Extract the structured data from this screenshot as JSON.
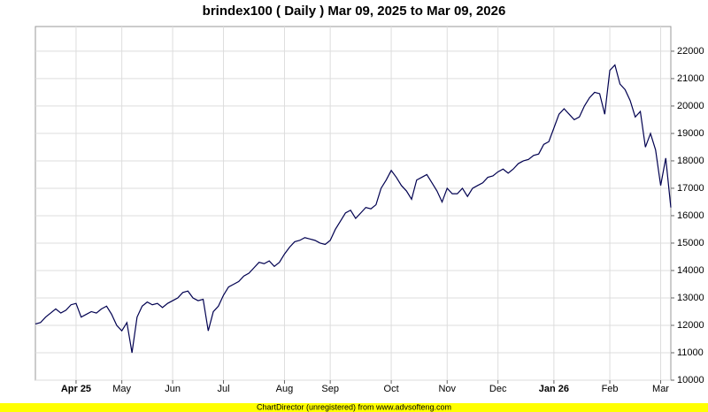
{
  "chart_data": {
    "type": "line",
    "title": "brindex100 ( Daily ) Mar 09, 2025 to Mar 09, 2026",
    "categories": [
      null,
      null,
      null,
      null,
      null,
      null,
      null,
      null,
      "Apr 25",
      null,
      null,
      null,
      null,
      null,
      null,
      null,
      null,
      "May",
      null,
      null,
      null,
      null,
      null,
      null,
      null,
      null,
      null,
      "Jun",
      null,
      null,
      null,
      null,
      null,
      null,
      null,
      null,
      null,
      "Jul",
      null,
      null,
      null,
      null,
      null,
      null,
      null,
      null,
      null,
      null,
      null,
      "Aug",
      null,
      null,
      null,
      null,
      null,
      null,
      null,
      null,
      "Sep",
      null,
      null,
      null,
      null,
      null,
      null,
      null,
      null,
      null,
      null,
      null,
      "Oct",
      null,
      null,
      null,
      null,
      null,
      null,
      null,
      null,
      null,
      null,
      "Nov",
      null,
      null,
      null,
      null,
      null,
      null,
      null,
      null,
      null,
      "Dec",
      null,
      null,
      null,
      null,
      null,
      null,
      null,
      null,
      null,
      null,
      "Jan 26",
      null,
      null,
      null,
      null,
      null,
      null,
      null,
      null,
      null,
      null,
      "Feb",
      null,
      null,
      null,
      null,
      null,
      null,
      null,
      null,
      null,
      "Mar",
      null,
      null
    ],
    "values": [
      12050,
      12100,
      12300,
      12450,
      12600,
      12450,
      12550,
      12750,
      12800,
      12300,
      12400,
      12500,
      12450,
      12600,
      12700,
      12400,
      12000,
      11800,
      12100,
      11000,
      12300,
      12700,
      12850,
      12750,
      12800,
      12650,
      12800,
      12900,
      13000,
      13200,
      13250,
      13000,
      12900,
      12950,
      11800,
      12500,
      12700,
      13100,
      13400,
      13500,
      13600,
      13800,
      13900,
      14100,
      14300,
      14250,
      14350,
      14150,
      14300,
      14600,
      14850,
      15050,
      15100,
      15200,
      15150,
      15100,
      15000,
      14950,
      15100,
      15500,
      15800,
      16100,
      16200,
      15900,
      16100,
      16300,
      16250,
      16400,
      17000,
      17300,
      17650,
      17400,
      17100,
      16900,
      16600,
      17300,
      17400,
      17500,
      17200,
      16900,
      16500,
      17000,
      16800,
      16800,
      17000,
      16700,
      17000,
      17100,
      17200,
      17400,
      17450,
      17600,
      17700,
      17550,
      17700,
      17900,
      18000,
      18050,
      18200,
      18250,
      18600,
      18700,
      19200,
      19700,
      19900,
      19700,
      19500,
      19600,
      20000,
      20300,
      20500,
      20450,
      19700,
      21300,
      21500,
      20800,
      20600,
      20200,
      19600,
      19800,
      18500,
      19000,
      18400,
      17100,
      18100,
      16300
    ],
    "color": "#000050",
    "ylim": [
      10000,
      22900
    ],
    "yticks": [
      10000,
      11000,
      12000,
      13000,
      14000,
      15000,
      16000,
      17000,
      18000,
      19000,
      20000,
      21000,
      22000
    ],
    "grid": true
  },
  "footer": "ChartDirector (unregistered) from www.advsofteng.com"
}
